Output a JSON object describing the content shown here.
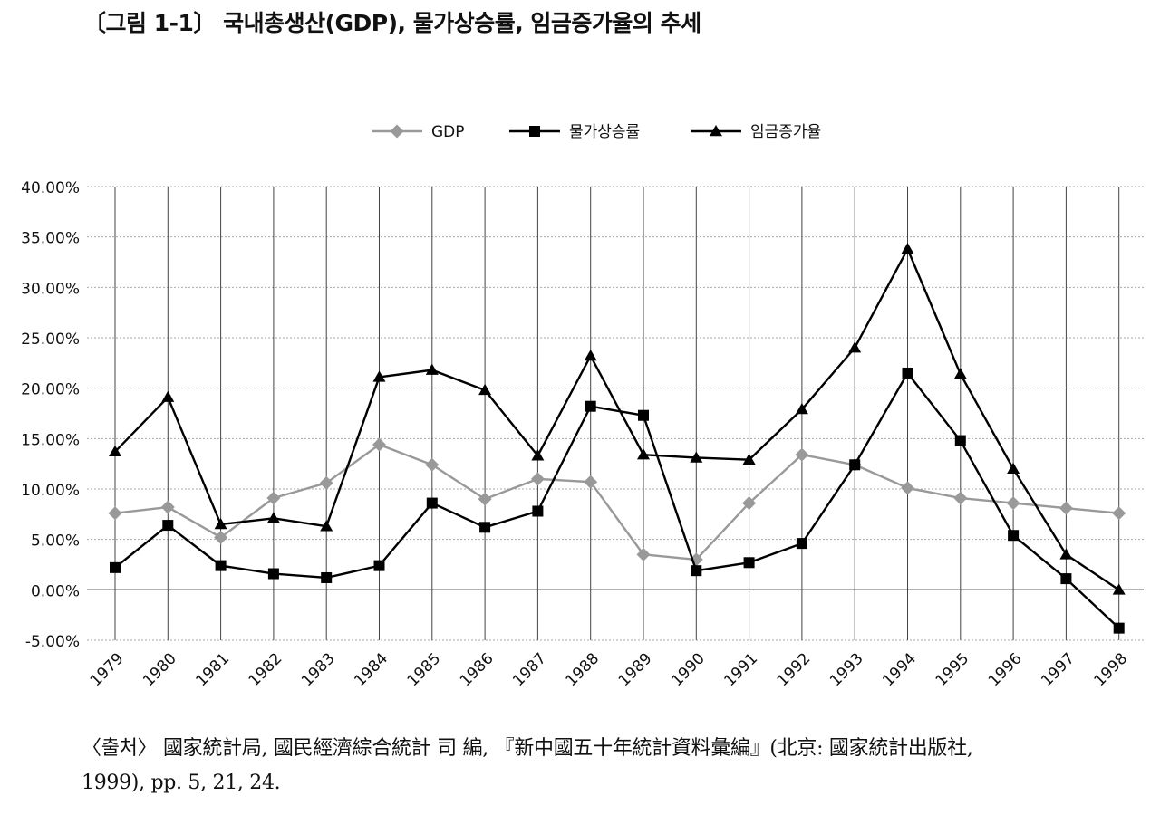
{
  "figure": {
    "title": "〔그림 1-1〕 국내총생산(GDP), 물가상승률, 임금증가율의 추세"
  },
  "source": {
    "line1": "〈출처〉 國家統計局, 國民經濟綜合統計 司 編, 『新中國五十年統計資料彙編』(北京: 國家統計出版社,",
    "line2": "1999), pp. 5, 21, 24."
  },
  "chart_data": {
    "type": "line",
    "categories": [
      "1979",
      "1980",
      "1981",
      "1982",
      "1983",
      "1984",
      "1985",
      "1986",
      "1987",
      "1988",
      "1989",
      "1990",
      "1991",
      "1992",
      "1993",
      "1994",
      "1995",
      "1996",
      "1997",
      "1998"
    ],
    "y_ticks": [
      "40.00%",
      "35.00%",
      "30.00%",
      "25.00%",
      "20.00%",
      "15.00%",
      "10.00%",
      "5.00%",
      "0.00%",
      "-5.00%"
    ],
    "ylim": [
      -5,
      40
    ],
    "y_unit": "%",
    "grid": "vertical lines at categories, dotted horizontal lines",
    "legend_position": "top-center",
    "series": [
      {
        "name": "GDP",
        "marker": "diamond",
        "color": "#999999",
        "values": [
          7.6,
          8.2,
          5.2,
          9.1,
          10.6,
          14.4,
          12.4,
          9.0,
          11.0,
          10.7,
          3.5,
          3.0,
          8.6,
          13.4,
          12.4,
          10.1,
          9.1,
          8.6,
          8.1,
          7.6
        ]
      },
      {
        "name": "물가상승률",
        "marker": "square",
        "color": "#000000",
        "values": [
          2.2,
          6.4,
          2.4,
          1.6,
          1.2,
          2.4,
          8.6,
          6.2,
          7.8,
          18.2,
          17.3,
          1.9,
          2.7,
          4.6,
          12.4,
          21.5,
          14.8,
          5.4,
          1.1,
          -3.8
        ]
      },
      {
        "name": "임금증가율",
        "marker": "triangle",
        "color": "#000000",
        "values": [
          13.7,
          19.1,
          6.5,
          7.1,
          6.3,
          21.1,
          21.8,
          19.8,
          13.3,
          23.2,
          13.4,
          13.1,
          12.9,
          17.9,
          24.0,
          33.8,
          21.4,
          12.0,
          3.5,
          0.0
        ]
      }
    ]
  }
}
